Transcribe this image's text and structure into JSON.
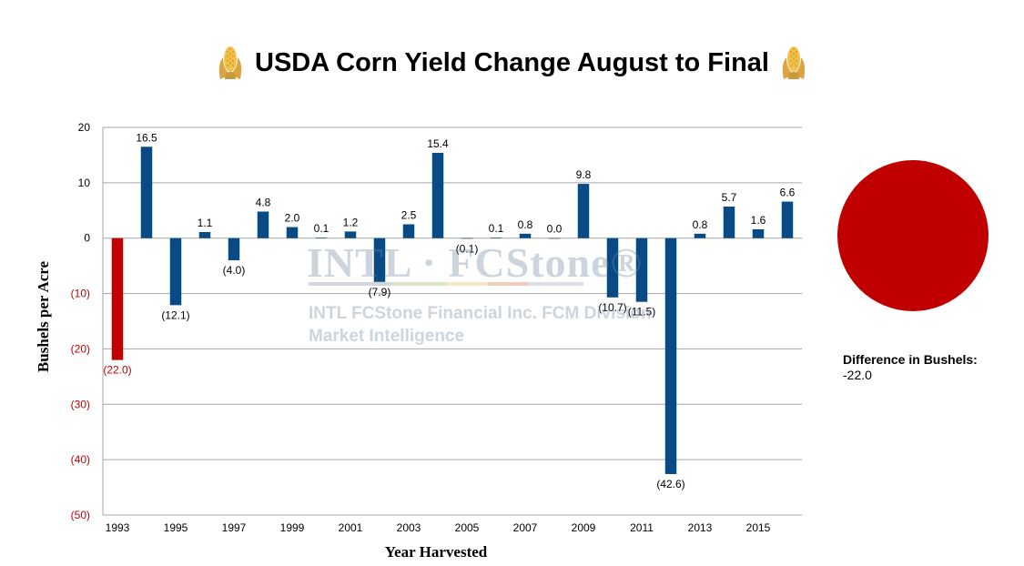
{
  "header": {
    "title": "USDA Corn Yield Change August to Final",
    "icon_left": "corn-icon",
    "icon_right": "corn-icon"
  },
  "watermark": {
    "logo": "INTL · FCStone®",
    "line1": "INTL FCStone Financial Inc. FCM Division",
    "line2": "Market Intelligence"
  },
  "sidebar": {
    "difference_label": "Difference in Bushels:",
    "difference_value": "-22.0",
    "indicator_color": "#c00000"
  },
  "chart_data": {
    "type": "bar",
    "title": "USDA Corn Yield Change August to Final",
    "xlabel": "Year Harvested",
    "ylabel": "Bushels per Acre",
    "ylim": [
      -50,
      20
    ],
    "yticks": [
      20,
      10,
      0,
      -10,
      -20,
      -30,
      -40,
      -50
    ],
    "ytick_labels": [
      "20",
      "10",
      "0",
      "(10)",
      "(20)",
      "(30)",
      "(40)",
      "(50)"
    ],
    "grid": true,
    "categories": [
      "1993",
      "1994",
      "1995",
      "1996",
      "1997",
      "1998",
      "1999",
      "2000",
      "2001",
      "2002",
      "2003",
      "2004",
      "2005",
      "2006",
      "2007",
      "2008",
      "2009",
      "2010",
      "2011",
      "2012",
      "2013",
      "2014",
      "2015",
      "2016"
    ],
    "xtick_labels": [
      "1993",
      "",
      "1995",
      "",
      "1997",
      "",
      "1999",
      "",
      "2001",
      "",
      "2003",
      "",
      "2005",
      "",
      "2007",
      "",
      "2009",
      "",
      "2011",
      "",
      "2013",
      "",
      "2015",
      ""
    ],
    "values": [
      -22.0,
      16.5,
      -12.1,
      1.1,
      -4.0,
      4.8,
      2.0,
      0.1,
      1.2,
      -7.9,
      2.5,
      15.4,
      -0.1,
      0.1,
      0.8,
      0.0,
      9.8,
      -10.7,
      -11.5,
      -42.6,
      0.8,
      5.7,
      1.6,
      6.6
    ],
    "data_labels": [
      "(22.0)",
      "16.5",
      "(12.1)",
      "1.1",
      "(4.0)",
      "4.8",
      "2.0",
      "0.1",
      "1.2",
      "(7.9)",
      "2.5",
      "15.4",
      "(0.1)",
      "0.1",
      "0.8",
      "0.0",
      "9.8",
      "(10.7)",
      "(11.5)",
      "(42.6)",
      "0.8",
      "5.7",
      "1.6",
      "6.6"
    ],
    "highlight_index": 0,
    "colors": {
      "bar": "#084a84",
      "highlight": "#c00000",
      "negative_tick_label": "#c00000",
      "grid": "#a6a6a6"
    }
  }
}
